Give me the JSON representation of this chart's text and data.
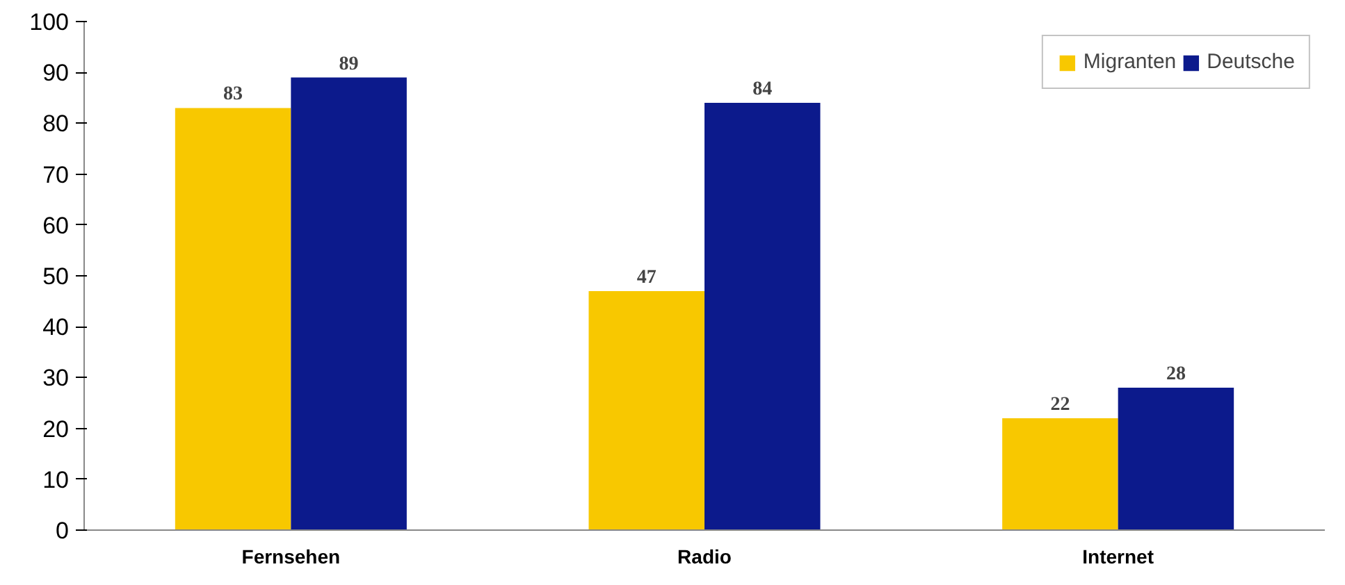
{
  "chart_data": {
    "type": "bar",
    "categories": [
      "Fernsehen",
      "Radio",
      "Internet"
    ],
    "series": [
      {
        "name": "Migranten",
        "color": "#f8c800",
        "values": [
          83,
          47,
          22
        ]
      },
      {
        "name": "Deutsche",
        "color": "#0c1a8c",
        "values": [
          89,
          84,
          28
        ]
      }
    ],
    "ylim": [
      0,
      100
    ],
    "yticks": [
      0,
      10,
      20,
      30,
      40,
      50,
      60,
      70,
      80,
      90,
      100
    ],
    "data_labels": true,
    "legend": "top right",
    "grid": false
  }
}
